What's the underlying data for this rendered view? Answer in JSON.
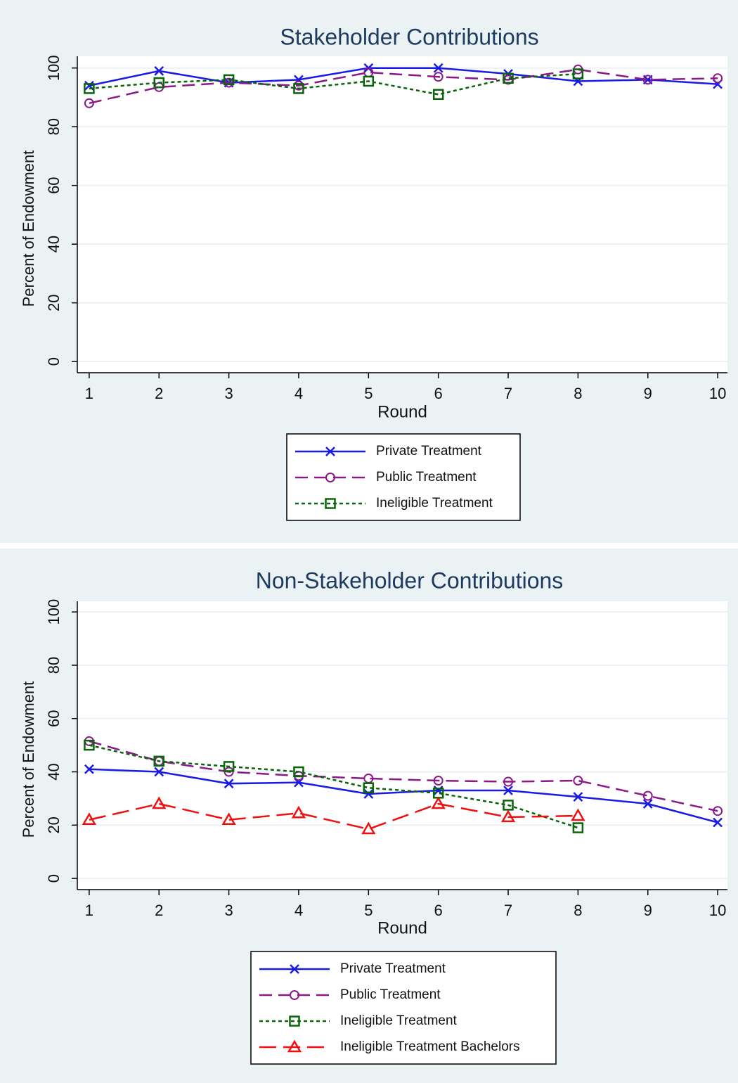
{
  "chart_data": [
    {
      "type": "line",
      "title": "Stakeholder Contributions",
      "xlabel": "Round",
      "ylabel": "Percent of Endowment",
      "x": [
        1,
        2,
        3,
        4,
        5,
        6,
        7,
        8,
        9,
        10
      ],
      "xlim": [
        0.83,
        10.14
      ],
      "xticks": [
        1,
        2,
        3,
        4,
        5,
        6,
        7,
        8,
        9,
        10
      ],
      "ylim": [
        -3.8,
        104
      ],
      "yticks": [
        0,
        20,
        40,
        60,
        80,
        100
      ],
      "grid": true,
      "series": [
        {
          "name": "Private Treatment",
          "color": "#1a1ae6",
          "marker": "x",
          "dash": "solid",
          "values": [
            94,
            99,
            95,
            96,
            100,
            100,
            98,
            95.5,
            96,
            94.5
          ]
        },
        {
          "name": "Public Treatment",
          "color": "#8b1a89",
          "marker": "circle",
          "dash": "long",
          "values": [
            88,
            93.5,
            95,
            94,
            98.5,
            97,
            96,
            99.5,
            96,
            96.5
          ]
        },
        {
          "name": "Ineligible Treatment",
          "color": "#0a640a",
          "marker": "square",
          "dash": "short",
          "values": [
            93,
            95,
            96,
            93,
            95.5,
            91,
            96.5,
            98,
            null,
            null
          ]
        }
      ]
    },
    {
      "type": "line",
      "title": "Non-Stakeholder Contributions",
      "xlabel": "Round",
      "ylabel": "Percent of Endowment",
      "x": [
        1,
        2,
        3,
        4,
        5,
        6,
        7,
        8,
        9,
        10
      ],
      "xlim": [
        0.83,
        10.14
      ],
      "xticks": [
        1,
        2,
        3,
        4,
        5,
        6,
        7,
        8,
        9,
        10
      ],
      "ylim": [
        -4.2,
        104
      ],
      "yticks": [
        0,
        20,
        40,
        60,
        80,
        100
      ],
      "grid": true,
      "series": [
        {
          "name": "Private Treatment",
          "color": "#1a1ae6",
          "marker": "x",
          "dash": "solid",
          "values": [
            41,
            40,
            35.6,
            36,
            31.7,
            33,
            33,
            30.6,
            28,
            21
          ]
        },
        {
          "name": "Public Treatment",
          "color": "#8b1a89",
          "marker": "circle",
          "dash": "long",
          "values": [
            51.5,
            44,
            40,
            38.5,
            37.5,
            36.7,
            36.3,
            36.7,
            31,
            25.3
          ]
        },
        {
          "name": "Ineligible Treatment",
          "color": "#0a640a",
          "marker": "square",
          "dash": "short",
          "values": [
            50,
            44,
            42,
            40,
            34,
            32,
            27.5,
            19,
            null,
            null
          ]
        },
        {
          "name": "Ineligible Treatment Bachelors",
          "color": "#f01010",
          "marker": "triangle",
          "dash": "longer",
          "values": [
            22,
            28,
            22,
            24.5,
            18.5,
            28,
            23,
            23.5,
            null,
            null
          ]
        }
      ]
    }
  ]
}
